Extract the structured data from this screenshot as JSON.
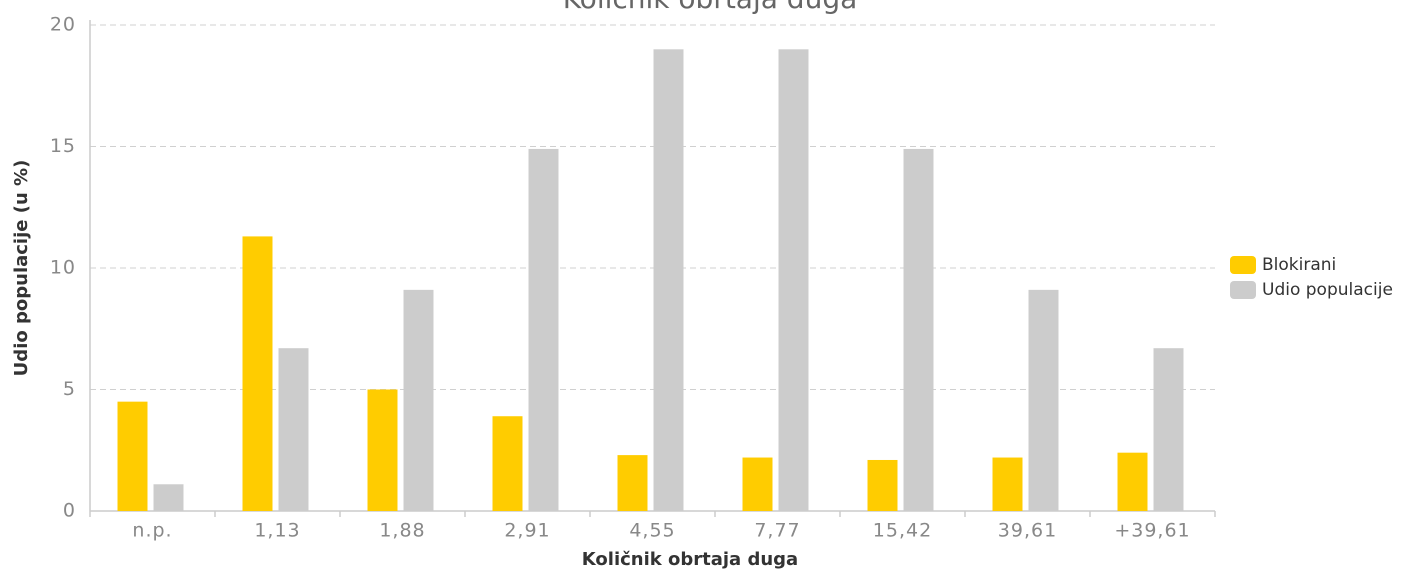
{
  "chart_data": {
    "type": "bar",
    "title": "Količnik obrtaja duga",
    "x_label": "Količnik obrtaja duga",
    "y_label": "Udio populacije (u %)",
    "categories": [
      "n.p.",
      "1,13",
      "1,88",
      "2,91",
      "4,55",
      "7,77",
      "15,42",
      "39,61",
      "+39,61"
    ],
    "series": [
      {
        "name": "Blokirani",
        "color": "#ffcc00",
        "values": [
          4.5,
          11.3,
          5.0,
          3.9,
          2.3,
          2.2,
          2.1,
          2.2,
          2.4
        ]
      },
      {
        "name": "Udio populacije",
        "color": "#cccccc",
        "values": [
          1.1,
          6.7,
          9.1,
          14.9,
          19.0,
          19.0,
          14.9,
          9.1,
          6.7
        ]
      }
    ],
    "ylim": [
      0,
      20
    ],
    "yticks": [
      0,
      5,
      10,
      15,
      20
    ],
    "grid": true,
    "legend": "right"
  }
}
